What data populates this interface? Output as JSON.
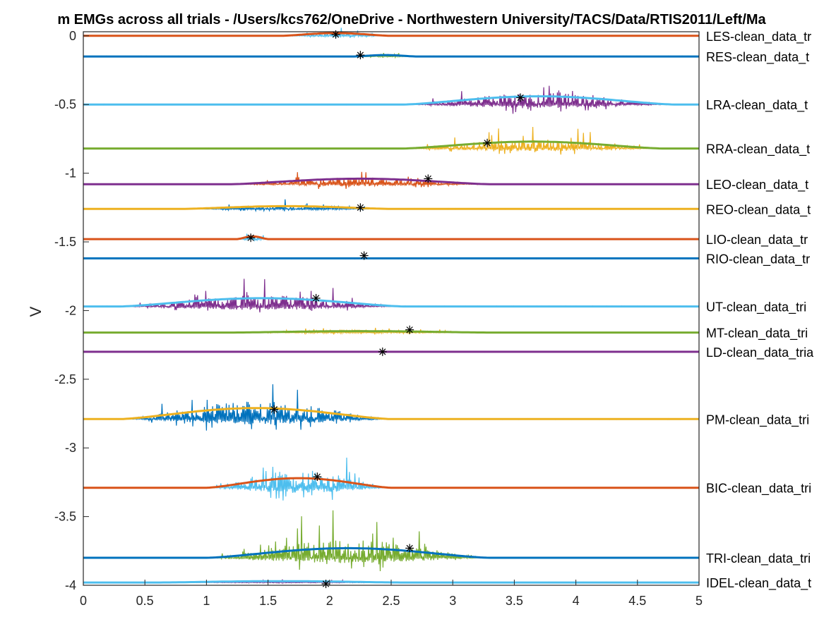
{
  "chart_data": {
    "type": "line",
    "title": "m EMGs across all trials - /Users/kcs762/OneDrive - Northwestern University/TACS/Data/RTIS2011/Left/Ma",
    "xlabel": "",
    "ylabel": "V",
    "xlim": [
      0,
      5
    ],
    "ylim": [
      -4,
      0.03
    ],
    "x_ticks": [
      "0",
      "0.5",
      "1",
      "1.5",
      "2",
      "2.5",
      "3",
      "3.5",
      "4",
      "4.5",
      "5"
    ],
    "y_ticks": [
      "0",
      "-0.5",
      "-1",
      "-1.5",
      "-2",
      "-2.5",
      "-3",
      "-3.5",
      "-4"
    ],
    "grid": false,
    "series": [
      {
        "name": "LES-clean_data_tr",
        "baseline": 0.0,
        "burst_start": 1.6,
        "burst_end": 2.5,
        "peak_amp": 0.06,
        "env_amp": 0.02,
        "marker_x": 2.05,
        "marker_y": 0.01,
        "raw_color": "#4DBEEE",
        "env_color": "#D95319"
      },
      {
        "name": "RES-clean_data_t",
        "baseline": -0.15,
        "burst_start": 2.2,
        "burst_end": 2.7,
        "peak_amp": 0.04,
        "env_amp": 0.01,
        "marker_x": 2.25,
        "marker_y": -0.14,
        "raw_color": "#77AC30",
        "env_color": "#0072BD"
      },
      {
        "name": "LRA-clean_data_t",
        "baseline": -0.5,
        "burst_start": 2.6,
        "burst_end": 4.8,
        "peak_amp": 0.24,
        "env_amp": 0.06,
        "marker_x": 3.55,
        "marker_y": -0.45,
        "raw_color": "#7E2F8E",
        "env_color": "#4DBEEE"
      },
      {
        "name": "RRA-clean_data_t",
        "baseline": -0.82,
        "burst_start": 2.6,
        "burst_end": 4.7,
        "peak_amp": 0.19,
        "env_amp": 0.05,
        "marker_x": 3.28,
        "marker_y": -0.78,
        "raw_color": "#EDB120",
        "env_color": "#77AC30"
      },
      {
        "name": "LEO-clean_data_t",
        "baseline": -1.08,
        "burst_start": 1.2,
        "burst_end": 3.3,
        "peak_amp": 0.14,
        "env_amp": 0.04,
        "marker_x": 2.8,
        "marker_y": -1.04,
        "raw_color": "#D95319",
        "env_color": "#7E2F8E"
      },
      {
        "name": "REO-clean_data_t",
        "baseline": -1.26,
        "burst_start": 0.8,
        "burst_end": 2.5,
        "peak_amp": 0.07,
        "env_amp": 0.02,
        "marker_x": 2.25,
        "marker_y": -1.25,
        "raw_color": "#0072BD",
        "env_color": "#EDB120"
      },
      {
        "name": "LIO-clean_data_tr",
        "baseline": -1.48,
        "burst_start": 1.25,
        "burst_end": 1.5,
        "peak_amp": 0.11,
        "env_amp": 0.02,
        "marker_x": 1.36,
        "marker_y": -1.47,
        "raw_color": "#4DBEEE",
        "env_color": "#D95319"
      },
      {
        "name": "RIO-clean_data_tr",
        "baseline": -1.62,
        "burst_start": 2.3,
        "burst_end": 2.35,
        "peak_amp": 0.0,
        "env_amp": 0.0,
        "marker_x": 2.28,
        "marker_y": -1.6,
        "raw_color": "#0072BD",
        "env_color": "#0072BD"
      },
      {
        "name": "UT-clean_data_tri",
        "baseline": -1.97,
        "burst_start": 0.3,
        "burst_end": 2.6,
        "peak_amp": 0.24,
        "env_amp": 0.06,
        "marker_x": 1.89,
        "marker_y": -1.91,
        "raw_color": "#7E2F8E",
        "env_color": "#4DBEEE"
      },
      {
        "name": "MT-clean_data_tri",
        "baseline": -2.16,
        "burst_start": 1.2,
        "burst_end": 3.3,
        "peak_amp": 0.05,
        "env_amp": 0.01,
        "marker_x": 2.65,
        "marker_y": -2.14,
        "raw_color": "#EDB120",
        "env_color": "#77AC30"
      },
      {
        "name": "LD-clean_data_tria",
        "baseline": -2.3,
        "burst_start": 2.4,
        "burst_end": 2.45,
        "peak_amp": 0.0,
        "env_amp": 0.0,
        "marker_x": 2.43,
        "marker_y": -2.3,
        "raw_color": "#7E2F8E",
        "env_color": "#7E2F8E"
      },
      {
        "name": "PM-clean_data_tri",
        "baseline": -2.79,
        "burst_start": 0.3,
        "burst_end": 2.5,
        "peak_amp": 0.37,
        "env_amp": 0.08,
        "marker_x": 1.55,
        "marker_y": -2.72,
        "raw_color": "#0072BD",
        "env_color": "#EDB120"
      },
      {
        "name": "BIC-clean_data_tri",
        "baseline": -3.29,
        "burst_start": 1.0,
        "burst_end": 2.5,
        "peak_amp": 0.38,
        "env_amp": 0.07,
        "marker_x": 1.9,
        "marker_y": -3.21,
        "raw_color": "#4DBEEE",
        "env_color": "#D95319"
      },
      {
        "name": "TRI-clean_data_tri",
        "baseline": -3.8,
        "burst_start": 1.0,
        "burst_end": 3.3,
        "peak_amp": 0.37,
        "env_amp": 0.07,
        "marker_x": 2.65,
        "marker_y": -3.73,
        "raw_color": "#77AC30",
        "env_color": "#0072BD"
      },
      {
        "name": "IDEL-clean_data_t",
        "baseline": -3.98,
        "burst_start": 0.6,
        "burst_end": 2.6,
        "peak_amp": 0.03,
        "env_amp": 0.01,
        "marker_x": 1.97,
        "marker_y": -3.99,
        "raw_color": "#7E2F8E",
        "env_color": "#4DBEEE"
      }
    ]
  }
}
